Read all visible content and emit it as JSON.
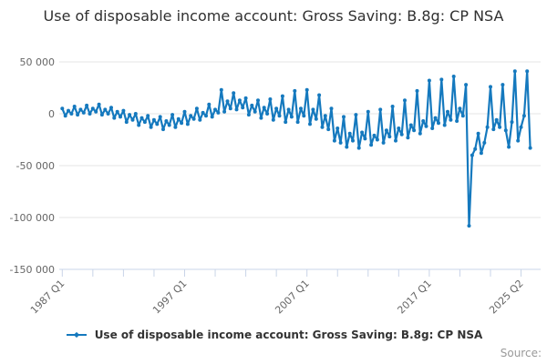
{
  "title": "Use of disposable income account: Gross Saving: B.8g: CP NSA",
  "source_label": "Source:",
  "legend": {
    "label": "Use of disposable income account: Gross Saving: B.8g: CP NSA"
  },
  "colors": {
    "series": "#1579be",
    "grid": "#e6e6e6",
    "axis": "#c9d4e8",
    "axis_label": "#666666",
    "title_text": "#303030",
    "legend_text": "#333333",
    "source_text": "#999999"
  },
  "chart_data": {
    "type": "line",
    "title": "Use of disposable income account: Gross Saving: B.8g: CP NSA",
    "series_name": "Use of disposable income account: Gross Saving: B.8g: CP NSA",
    "frequency": "quarterly",
    "x_start": "1987 Q1",
    "x_end": "2025 Q2",
    "xlabel": "",
    "ylabel": "",
    "ylim": [
      -150000,
      50000
    ],
    "grid": "horizontal",
    "legend_position": "bottom",
    "marker": "point",
    "yticks": [
      {
        "value": 50000,
        "label": "50 000"
      },
      {
        "value": 0,
        "label": "0"
      },
      {
        "value": -50000,
        "label": "-50 000"
      },
      {
        "value": -100000,
        "label": "-100 000"
      },
      {
        "value": -150000,
        "label": "-150 000"
      }
    ],
    "xticks": [
      "1987 Q1",
      "1997 Q1",
      "2007 Q1",
      "2017 Q1",
      "2025 Q2"
    ],
    "xtick_indices": [
      0,
      40,
      80,
      120,
      150
    ],
    "tick_indices": [
      0,
      10,
      20,
      30,
      40,
      50,
      60,
      70,
      80,
      90,
      100,
      110,
      120,
      130,
      140,
      150
    ],
    "values": [
      5000,
      -2000,
      3000,
      0,
      7000,
      -1000,
      4000,
      1000,
      8000,
      0,
      5000,
      2000,
      9000,
      -1000,
      4000,
      0,
      6000,
      -4000,
      2000,
      -3000,
      3000,
      -8000,
      -1000,
      -6000,
      0,
      -11000,
      -4000,
      -8000,
      -2000,
      -13000,
      -6000,
      -10000,
      -3000,
      -15000,
      -7000,
      -11000,
      -1000,
      -13000,
      -5000,
      -9000,
      2000,
      -10000,
      -2000,
      -5000,
      5000,
      -6000,
      1000,
      -2000,
      9000,
      -3000,
      4000,
      1000,
      23000,
      2000,
      12000,
      5000,
      20000,
      4000,
      13000,
      6000,
      15000,
      -1000,
      8000,
      2000,
      13000,
      -4000,
      6000,
      0,
      14000,
      -6000,
      5000,
      -2000,
      17000,
      -8000,
      4000,
      -3000,
      22000,
      -8000,
      5000,
      -2000,
      23000,
      -10000,
      4000,
      -5000,
      18000,
      -13000,
      -2000,
      -15000,
      5000,
      -26000,
      -14000,
      -28000,
      -3000,
      -32000,
      -19000,
      -26000,
      -1000,
      -33000,
      -18000,
      -24000,
      2000,
      -30000,
      -21000,
      -25000,
      4000,
      -28000,
      -16000,
      -22000,
      7000,
      -26000,
      -14000,
      -20000,
      13000,
      -23000,
      -11000,
      -16000,
      22000,
      -19000,
      -7000,
      -12000,
      32000,
      -14000,
      -4000,
      -9000,
      33000,
      -11000,
      2000,
      -6000,
      36000,
      -7000,
      5000,
      -2000,
      28000,
      -108000,
      -40000,
      -34000,
      -19000,
      -38000,
      -28000,
      -13000,
      26000,
      -15000,
      -6000,
      -13000,
      28000,
      -16000,
      -32000,
      -8000,
      41000,
      -26000,
      -13000,
      -2000,
      41000,
      -33000
    ]
  }
}
